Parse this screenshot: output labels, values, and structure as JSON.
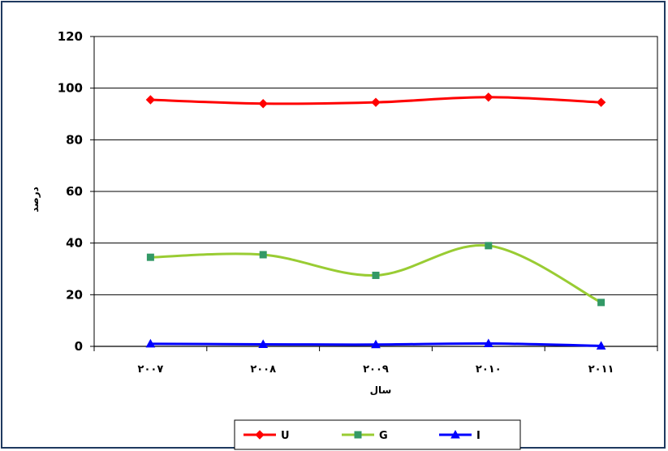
{
  "chart_data": {
    "type": "line",
    "categories": [
      "۲۰۰۷",
      "۲۰۰۸",
      "۲۰۰۹",
      "۲۰۱۰",
      "۲۰۱۱"
    ],
    "ylim": [
      0,
      120
    ],
    "yticks": [
      0,
      20,
      40,
      60,
      80,
      100,
      120
    ],
    "xlabel": "سال",
    "ylabel": "درصد",
    "grid": true,
    "legend_position": "bottom",
    "smooth": true,
    "series": [
      {
        "name": "U",
        "color": "#ff0000",
        "marker": "diamond",
        "values": [
          95.5,
          94,
          94.5,
          96.5,
          94.5
        ]
      },
      {
        "name": "G",
        "color": "#99cc33",
        "marker_color": "#339966",
        "marker": "square",
        "values": [
          34.5,
          35.5,
          27.5,
          39,
          17
        ]
      },
      {
        "name": "I",
        "color": "#0000ff",
        "marker": "triangle",
        "values": [
          1,
          0.8,
          0.7,
          1.1,
          0.2
        ]
      }
    ]
  }
}
